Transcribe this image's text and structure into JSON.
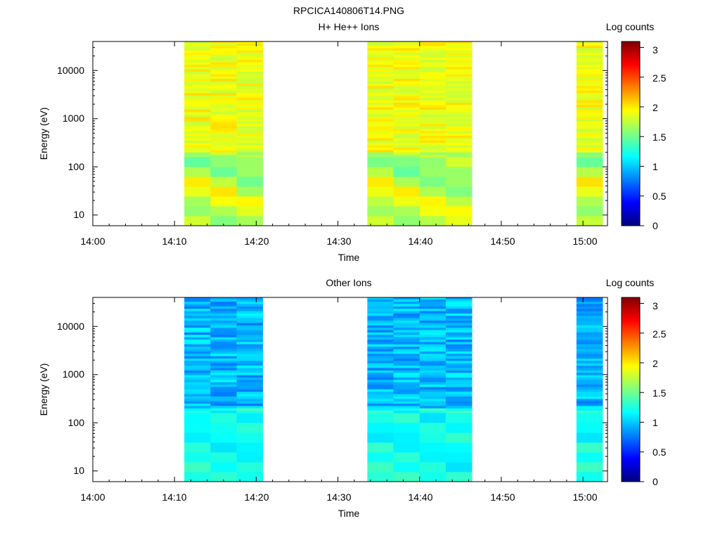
{
  "figure_title": "RPCICA140806T14.PNG",
  "chart_data": [
    {
      "type": "heatmap",
      "title": "H+ He++ Ions",
      "xlabel": "Time",
      "ylabel": "Energy (eV)",
      "x_ticks": [
        "14:00",
        "14:10",
        "14:20",
        "14:30",
        "14:40",
        "14:50",
        "15:00"
      ],
      "x_range": [
        "14:00",
        "15:03"
      ],
      "y_scale": "log",
      "y_ticks": [
        "10",
        "100",
        "1000",
        "10000"
      ],
      "y_range": [
        6,
        40000
      ],
      "colorbar": {
        "label": "Log counts",
        "ticks": [
          "0",
          "0.5",
          "1",
          "1.5",
          "2",
          "2.5",
          "3"
        ],
        "range": [
          0,
          3.1
        ],
        "colormap": "jet"
      },
      "time_blocks": [
        {
          "start": "14:11:12",
          "end": "14:20:48",
          "columns": 3
        },
        {
          "start": "14:33:36",
          "end": "14:46:24",
          "columns": 4
        },
        {
          "start": "14:59:12",
          "end": "15:02:24",
          "columns": 1
        }
      ],
      "base_level": 1.9,
      "low_energy_levels": [
        1.8,
        1.6,
        1.7,
        1.9,
        2.0,
        1.7,
        1.5,
        1.6,
        1.6
      ],
      "level_jitter": 0.15
    },
    {
      "type": "heatmap",
      "title": "Other Ions",
      "xlabel": "Time",
      "ylabel": "Energy (eV)",
      "x_ticks": [
        "14:00",
        "14:10",
        "14:20",
        "14:30",
        "14:40",
        "14:50",
        "15:00"
      ],
      "x_range": [
        "14:00",
        "15:03"
      ],
      "y_scale": "log",
      "y_ticks": [
        "10",
        "100",
        "1000",
        "10000"
      ],
      "y_range": [
        6,
        40000
      ],
      "colorbar": {
        "label": "Log counts",
        "ticks": [
          "0",
          "0.5",
          "1",
          "1.5",
          "2",
          "2.5",
          "3"
        ],
        "range": [
          0,
          3.1
        ],
        "colormap": "jet"
      },
      "time_blocks": [
        {
          "start": "14:11:12",
          "end": "14:20:48",
          "columns": 3
        },
        {
          "start": "14:33:36",
          "end": "14:46:24",
          "columns": 4
        },
        {
          "start": "14:59:12",
          "end": "15:02:24",
          "columns": 1
        }
      ],
      "base_level": 0.95,
      "low_energy_levels": [
        1.25,
        1.35,
        1.2,
        1.3,
        1.1,
        1.15,
        1.2,
        1.3,
        1.1
      ],
      "level_jitter": 0.2
    }
  ]
}
